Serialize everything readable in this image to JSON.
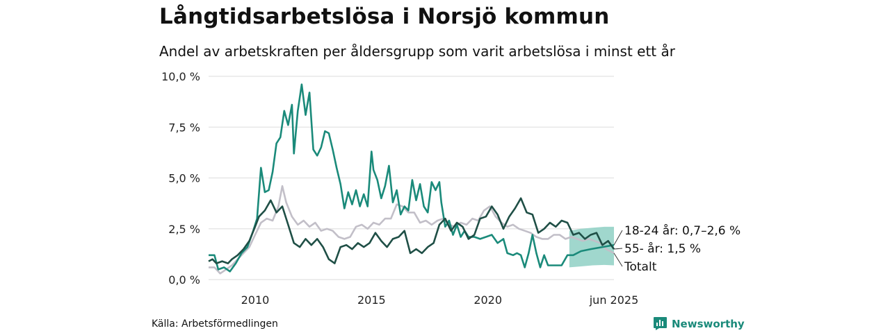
{
  "title": "Långtidsarbetslösa i Norsjö kommun",
  "subtitle": "Andel av arbetskraften per åldersgrupp som varit arbetslösa i minst ett år",
  "source": "Källa: Arbetsförmedlingen",
  "brand": "Newsworthy",
  "colors": {
    "youth": "#1a8a7a",
    "senior": "#1f4f46",
    "total": "#c2bfc8",
    "band": "#8fd0c4",
    "grid": "#e2e2e2"
  },
  "chart_data": {
    "type": "line",
    "ylim": [
      0,
      10
    ],
    "yticks": [
      0,
      2.5,
      5,
      7.5,
      10
    ],
    "ytick_labels": [
      "0,0 %",
      "2,5 %",
      "5,0 %",
      "7,5 %",
      "10,0 %"
    ],
    "xlim": [
      "2008-01",
      "2025-06"
    ],
    "xticks": [
      "2010-01",
      "2015-01",
      "2020-01",
      "2025-06"
    ],
    "xtick_labels": [
      "2010",
      "2015",
      "2020",
      "jun 2025"
    ],
    "annotations": [
      {
        "series": "18-24 år",
        "text": "18-24 år: 0,7–2,6 %"
      },
      {
        "series": "55- år",
        "text": "55- år: 1,5 %"
      },
      {
        "series": "Totalt",
        "text": "Totalt"
      }
    ],
    "uncertainty_band": {
      "series": "18-24 år",
      "points": [
        {
          "x": "2023-07",
          "low": 0.6,
          "high": 2.4
        },
        {
          "x": "2024-01",
          "low": 0.65,
          "high": 2.5
        },
        {
          "x": "2024-07",
          "low": 0.7,
          "high": 2.55
        },
        {
          "x": "2025-01",
          "low": 0.72,
          "high": 2.6
        },
        {
          "x": "2025-06",
          "low": 0.7,
          "high": 2.6
        }
      ]
    },
    "series": [
      {
        "name": "18-24 år",
        "points": [
          [
            "2008-01",
            1.2
          ],
          [
            "2008-04",
            1.2
          ],
          [
            "2008-06",
            0.5
          ],
          [
            "2008-09",
            0.6
          ],
          [
            "2008-12",
            0.4
          ],
          [
            "2009-03",
            0.8
          ],
          [
            "2009-06",
            1.3
          ],
          [
            "2009-09",
            1.6
          ],
          [
            "2009-12",
            2.4
          ],
          [
            "2010-02",
            3.0
          ],
          [
            "2010-04",
            5.5
          ],
          [
            "2010-06",
            4.3
          ],
          [
            "2010-08",
            4.4
          ],
          [
            "2010-10",
            5.3
          ],
          [
            "2010-12",
            6.7
          ],
          [
            "2011-02",
            7.0
          ],
          [
            "2011-04",
            8.3
          ],
          [
            "2011-06",
            7.6
          ],
          [
            "2011-08",
            8.6
          ],
          [
            "2011-09",
            6.2
          ],
          [
            "2011-11",
            8.3
          ],
          [
            "2012-01",
            9.6
          ],
          [
            "2012-03",
            8.1
          ],
          [
            "2012-05",
            9.2
          ],
          [
            "2012-07",
            6.4
          ],
          [
            "2012-09",
            6.1
          ],
          [
            "2012-11",
            6.5
          ],
          [
            "2013-01",
            7.3
          ],
          [
            "2013-03",
            7.2
          ],
          [
            "2013-05",
            6.4
          ],
          [
            "2013-07",
            5.5
          ],
          [
            "2013-09",
            4.7
          ],
          [
            "2013-11",
            3.5
          ],
          [
            "2014-01",
            4.3
          ],
          [
            "2014-03",
            3.7
          ],
          [
            "2014-05",
            4.4
          ],
          [
            "2014-07",
            3.6
          ],
          [
            "2014-09",
            4.2
          ],
          [
            "2014-11",
            3.6
          ],
          [
            "2015-01",
            6.3
          ],
          [
            "2015-02",
            5.4
          ],
          [
            "2015-04",
            4.9
          ],
          [
            "2015-06",
            4.0
          ],
          [
            "2015-08",
            4.6
          ],
          [
            "2015-10",
            5.6
          ],
          [
            "2015-12",
            3.8
          ],
          [
            "2016-02",
            4.4
          ],
          [
            "2016-04",
            3.2
          ],
          [
            "2016-06",
            3.6
          ],
          [
            "2016-08",
            3.4
          ],
          [
            "2016-10",
            4.9
          ],
          [
            "2016-12",
            3.9
          ],
          [
            "2017-02",
            4.7
          ],
          [
            "2017-04",
            3.6
          ],
          [
            "2017-06",
            3.3
          ],
          [
            "2017-08",
            4.8
          ],
          [
            "2017-10",
            4.4
          ],
          [
            "2017-12",
            4.8
          ],
          [
            "2018-01",
            3.8
          ],
          [
            "2018-03",
            2.6
          ],
          [
            "2018-05",
            2.9
          ],
          [
            "2018-07",
            2.2
          ],
          [
            "2018-09",
            2.7
          ],
          [
            "2018-11",
            2.1
          ],
          [
            "2019-01",
            2.4
          ],
          [
            "2019-03",
            2.1
          ],
          [
            "2019-06",
            2.1
          ],
          [
            "2019-09",
            2.0
          ],
          [
            "2019-12",
            2.1
          ],
          [
            "2020-03",
            2.2
          ],
          [
            "2020-06",
            1.8
          ],
          [
            "2020-09",
            2.0
          ],
          [
            "2020-11",
            1.3
          ],
          [
            "2021-02",
            1.2
          ],
          [
            "2021-04",
            1.3
          ],
          [
            "2021-06",
            1.2
          ],
          [
            "2021-08",
            0.6
          ],
          [
            "2021-10",
            1.3
          ],
          [
            "2021-12",
            2.2
          ],
          [
            "2022-02",
            1.3
          ],
          [
            "2022-04",
            0.6
          ],
          [
            "2022-06",
            1.2
          ],
          [
            "2022-08",
            0.7
          ],
          [
            "2022-11",
            0.7
          ],
          [
            "2023-03",
            0.7
          ],
          [
            "2023-06",
            1.2
          ],
          [
            "2023-09",
            1.2
          ],
          [
            "2024-01",
            1.4
          ],
          [
            "2024-06",
            1.5
          ],
          [
            "2024-12",
            1.6
          ],
          [
            "2025-06",
            1.7
          ]
        ]
      },
      {
        "name": "55- år",
        "points": [
          [
            "2008-01",
            0.9
          ],
          [
            "2008-03",
            1.0
          ],
          [
            "2008-05",
            0.8
          ],
          [
            "2008-08",
            0.9
          ],
          [
            "2008-11",
            0.8
          ],
          [
            "2009-01",
            1.0
          ],
          [
            "2009-04",
            1.2
          ],
          [
            "2009-07",
            1.5
          ],
          [
            "2009-10",
            1.9
          ],
          [
            "2010-01",
            2.6
          ],
          [
            "2010-03",
            3.1
          ],
          [
            "2010-06",
            3.4
          ],
          [
            "2010-09",
            3.9
          ],
          [
            "2010-12",
            3.3
          ],
          [
            "2011-03",
            3.6
          ],
          [
            "2011-06",
            2.7
          ],
          [
            "2011-09",
            1.8
          ],
          [
            "2011-12",
            1.6
          ],
          [
            "2012-03",
            2.0
          ],
          [
            "2012-06",
            1.7
          ],
          [
            "2012-09",
            2.0
          ],
          [
            "2012-12",
            1.6
          ],
          [
            "2013-03",
            1.0
          ],
          [
            "2013-06",
            0.8
          ],
          [
            "2013-09",
            1.6
          ],
          [
            "2013-12",
            1.7
          ],
          [
            "2014-03",
            1.5
          ],
          [
            "2014-06",
            1.8
          ],
          [
            "2014-09",
            1.6
          ],
          [
            "2014-12",
            1.8
          ],
          [
            "2015-03",
            2.3
          ],
          [
            "2015-06",
            1.9
          ],
          [
            "2015-09",
            1.6
          ],
          [
            "2015-12",
            2.0
          ],
          [
            "2016-03",
            2.1
          ],
          [
            "2016-06",
            2.4
          ],
          [
            "2016-09",
            1.3
          ],
          [
            "2016-12",
            1.5
          ],
          [
            "2017-03",
            1.3
          ],
          [
            "2017-06",
            1.6
          ],
          [
            "2017-09",
            1.8
          ],
          [
            "2017-12",
            2.7
          ],
          [
            "2018-03",
            3.0
          ],
          [
            "2018-06",
            2.4
          ],
          [
            "2018-09",
            2.8
          ],
          [
            "2018-12",
            2.6
          ],
          [
            "2019-03",
            2.0
          ],
          [
            "2019-06",
            2.2
          ],
          [
            "2019-09",
            3.0
          ],
          [
            "2019-12",
            3.1
          ],
          [
            "2020-03",
            3.6
          ],
          [
            "2020-06",
            3.2
          ],
          [
            "2020-09",
            2.5
          ],
          [
            "2020-12",
            3.1
          ],
          [
            "2021-03",
            3.5
          ],
          [
            "2021-06",
            4.0
          ],
          [
            "2021-09",
            3.3
          ],
          [
            "2021-12",
            3.2
          ],
          [
            "2022-03",
            2.3
          ],
          [
            "2022-06",
            2.5
          ],
          [
            "2022-09",
            2.8
          ],
          [
            "2022-12",
            2.6
          ],
          [
            "2023-03",
            2.9
          ],
          [
            "2023-06",
            2.8
          ],
          [
            "2023-09",
            2.2
          ],
          [
            "2023-12",
            2.3
          ],
          [
            "2024-03",
            2.0
          ],
          [
            "2024-06",
            2.2
          ],
          [
            "2024-09",
            2.3
          ],
          [
            "2024-12",
            1.7
          ],
          [
            "2025-03",
            1.9
          ],
          [
            "2025-06",
            1.5
          ]
        ]
      },
      {
        "name": "Totalt",
        "points": [
          [
            "2008-01",
            0.6
          ],
          [
            "2008-04",
            0.6
          ],
          [
            "2008-07",
            0.3
          ],
          [
            "2008-10",
            0.5
          ],
          [
            "2009-01",
            0.7
          ],
          [
            "2009-04",
            1.0
          ],
          [
            "2009-07",
            1.3
          ],
          [
            "2009-10",
            1.6
          ],
          [
            "2010-01",
            2.2
          ],
          [
            "2010-04",
            2.8
          ],
          [
            "2010-07",
            3.0
          ],
          [
            "2010-10",
            2.9
          ],
          [
            "2011-01",
            3.6
          ],
          [
            "2011-03",
            4.6
          ],
          [
            "2011-05",
            3.8
          ],
          [
            "2011-08",
            3.1
          ],
          [
            "2011-11",
            2.7
          ],
          [
            "2012-02",
            2.9
          ],
          [
            "2012-05",
            2.6
          ],
          [
            "2012-08",
            2.8
          ],
          [
            "2012-11",
            2.4
          ],
          [
            "2013-02",
            2.5
          ],
          [
            "2013-05",
            2.4
          ],
          [
            "2013-08",
            2.1
          ],
          [
            "2013-11",
            2.0
          ],
          [
            "2014-02",
            2.1
          ],
          [
            "2014-05",
            2.6
          ],
          [
            "2014-08",
            2.7
          ],
          [
            "2014-11",
            2.5
          ],
          [
            "2015-02",
            2.8
          ],
          [
            "2015-05",
            2.7
          ],
          [
            "2015-08",
            3.0
          ],
          [
            "2015-11",
            3.0
          ],
          [
            "2016-02",
            3.7
          ],
          [
            "2016-05",
            3.6
          ],
          [
            "2016-08",
            3.3
          ],
          [
            "2016-11",
            3.3
          ],
          [
            "2017-02",
            2.8
          ],
          [
            "2017-05",
            2.9
          ],
          [
            "2017-08",
            2.7
          ],
          [
            "2017-11",
            2.9
          ],
          [
            "2018-02",
            3.0
          ],
          [
            "2018-05",
            2.7
          ],
          [
            "2018-08",
            2.6
          ],
          [
            "2018-11",
            2.8
          ],
          [
            "2019-02",
            2.7
          ],
          [
            "2019-05",
            3.0
          ],
          [
            "2019-08",
            2.9
          ],
          [
            "2019-11",
            3.4
          ],
          [
            "2020-02",
            3.6
          ],
          [
            "2020-05",
            3.1
          ],
          [
            "2020-08",
            2.8
          ],
          [
            "2020-11",
            2.6
          ],
          [
            "2021-02",
            2.7
          ],
          [
            "2021-05",
            2.5
          ],
          [
            "2021-08",
            2.4
          ],
          [
            "2021-11",
            2.3
          ],
          [
            "2022-02",
            2.1
          ],
          [
            "2022-05",
            2.0
          ],
          [
            "2022-08",
            2.0
          ],
          [
            "2022-11",
            2.2
          ],
          [
            "2023-02",
            2.2
          ],
          [
            "2023-05",
            2.0
          ],
          [
            "2023-08",
            2.1
          ],
          [
            "2023-11",
            2.0
          ],
          [
            "2024-02",
            1.9
          ],
          [
            "2024-05",
            2.0
          ],
          [
            "2024-08",
            1.9
          ],
          [
            "2024-11",
            1.8
          ],
          [
            "2025-02",
            1.5
          ],
          [
            "2025-06",
            1.3
          ]
        ]
      }
    ]
  }
}
